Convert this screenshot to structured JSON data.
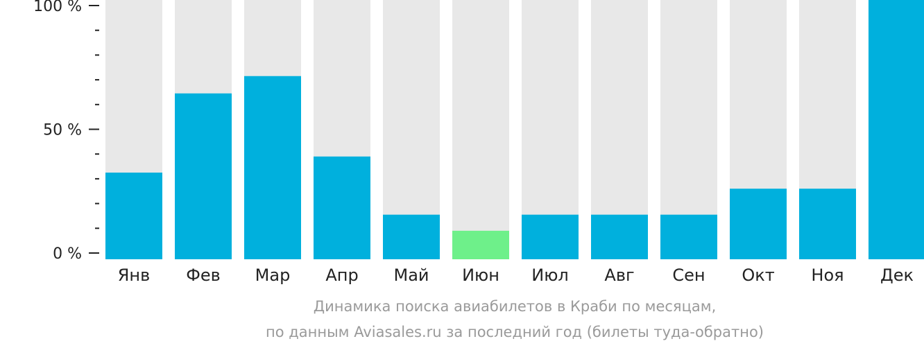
{
  "chart_data": {
    "type": "bar",
    "categories": [
      "Янв",
      "Фев",
      "Мар",
      "Апр",
      "Май",
      "Июн",
      "Июл",
      "Авг",
      "Сен",
      "Окт",
      "Ноя",
      "Дек"
    ],
    "values": [
      32.5,
      64.5,
      71.5,
      39,
      15.5,
      9,
      15.5,
      15.5,
      15.5,
      26,
      26,
      100
    ],
    "highlight_index": 5,
    "ylim": [
      0,
      100
    ],
    "yticks": [
      {
        "value": 0,
        "label": "0 %"
      },
      {
        "value": 50,
        "label": "50 %"
      },
      {
        "value": 100,
        "label": "100 %"
      }
    ],
    "minor_tick_step": 10,
    "colors": {
      "bar": "#00b0dd",
      "highlight": "#6ef08a",
      "background": "#e8e8e8",
      "axis": "#222222"
    },
    "grid": false,
    "legend": false
  },
  "caption": {
    "line1": "Динамика поиска авиабилетов в Краби по месяцам,",
    "line2": "по данным Aviasales.ru за последний год (билеты туда-обратно)"
  }
}
